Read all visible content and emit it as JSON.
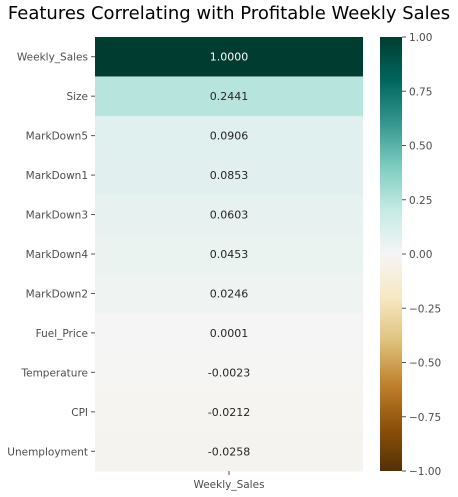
{
  "chart_data": {
    "type": "heatmap",
    "title": "Features Correlating with Profitable Weekly Sales",
    "column_labels": [
      "Weekly_Sales"
    ],
    "row_labels": [
      "Weekly_Sales",
      "Size",
      "MarkDown5",
      "MarkDown1",
      "MarkDown3",
      "MarkDown4",
      "MarkDown2",
      "Fuel_Price",
      "Temperature",
      "CPI",
      "Unemployment"
    ],
    "values": [
      1.0,
      0.2441,
      0.0906,
      0.0853,
      0.0603,
      0.0453,
      0.0246,
      0.0001,
      -0.0023,
      -0.0212,
      -0.0258
    ],
    "value_labels": [
      "1.0000",
      "0.2441",
      "0.0906",
      "0.0853",
      "0.0603",
      "0.0453",
      "0.0246",
      "0.0001",
      "-0.0023",
      "-0.0212",
      "-0.0258"
    ],
    "colormap": "BrBG",
    "vmin": -1.0,
    "vmax": 1.0,
    "colorbar_ticks": [
      "1.00",
      "0.75",
      "0.50",
      "0.25",
      "0.00",
      "−0.25",
      "−0.50",
      "−0.75",
      "−1.00"
    ],
    "colorbar_tick_values": [
      1.0,
      0.75,
      0.5,
      0.25,
      0.0,
      -0.25,
      -0.5,
      -0.75,
      -1.0
    ]
  }
}
